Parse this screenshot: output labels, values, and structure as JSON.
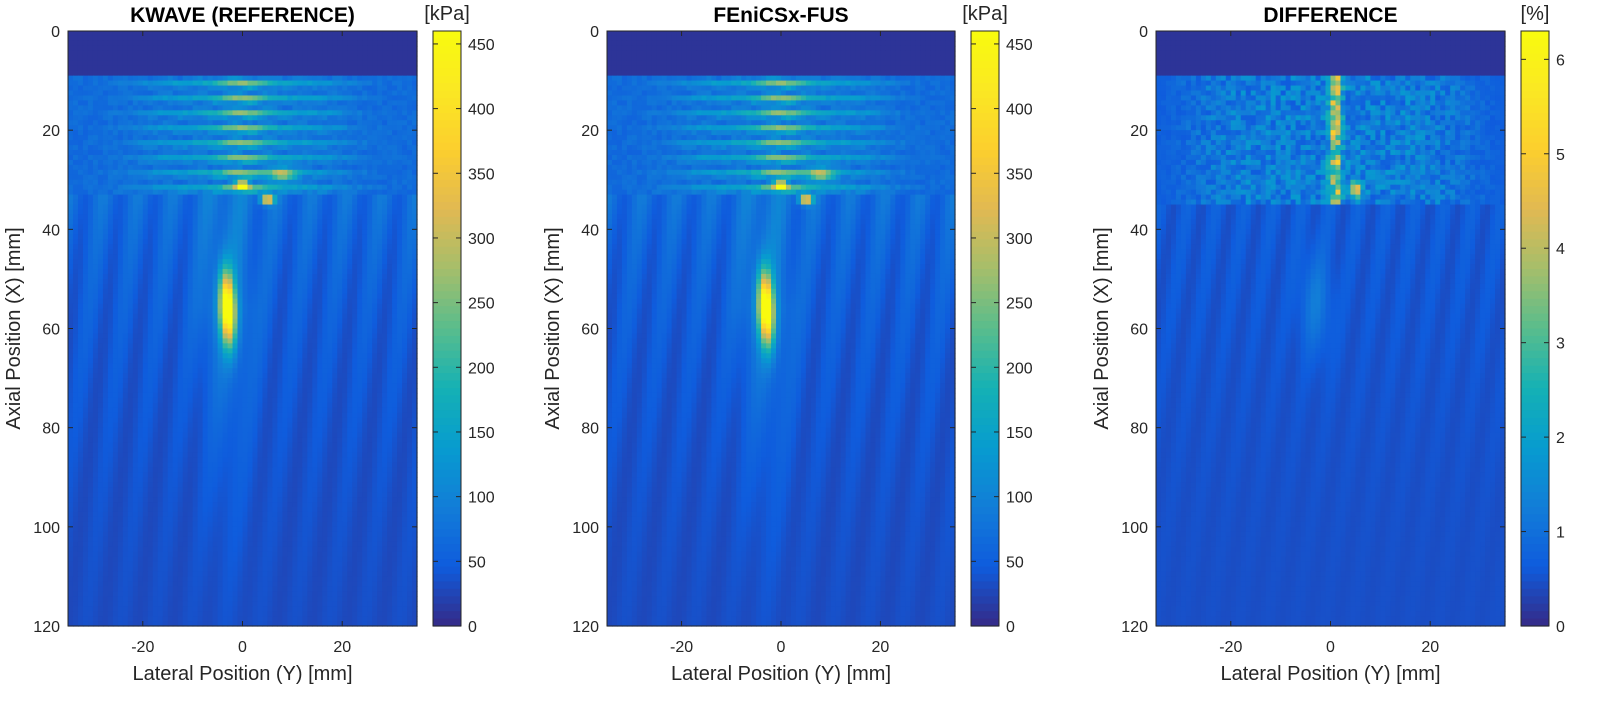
{
  "chart_data": [
    {
      "type": "heatmap",
      "title": "KWAVE (REFERENCE)",
      "xlabel": "Lateral Position (Y) [mm]",
      "ylabel": "Axial Position (X) [mm]",
      "xlim": [
        -35,
        35
      ],
      "ylim": [
        0,
        120
      ],
      "x_ticks": [
        -20,
        0,
        20
      ],
      "y_ticks": [
        0,
        20,
        40,
        60,
        80,
        100,
        120
      ],
      "colorbar_unit": "[kPa]",
      "clim": [
        0,
        460
      ],
      "colorbar_ticks": [
        0,
        50,
        100,
        150,
        200,
        250,
        300,
        350,
        400,
        450
      ],
      "colormap": "parula",
      "features": [
        {
          "name": "water layer (near zero)",
          "y_range": [
            0,
            9
          ]
        },
        {
          "name": "near-field interference",
          "y_range": [
            9,
            33
          ]
        },
        {
          "name": "focal spot",
          "x": -3,
          "y": 56,
          "peak": 450
        },
        {
          "name": "hot spots",
          "points": [
            [
              0,
              31,
              330
            ],
            [
              5,
              34,
              380
            ]
          ]
        }
      ]
    },
    {
      "type": "heatmap",
      "title": "FEniCSx-FUS",
      "xlabel": "Lateral Position (Y) [mm]",
      "ylabel": "Axial Position (X) [mm]",
      "xlim": [
        -35,
        35
      ],
      "ylim": [
        0,
        120
      ],
      "x_ticks": [
        -20,
        0,
        20
      ],
      "y_ticks": [
        0,
        20,
        40,
        60,
        80,
        100,
        120
      ],
      "colorbar_unit": "[kPa]",
      "clim": [
        0,
        460
      ],
      "colorbar_ticks": [
        0,
        50,
        100,
        150,
        200,
        250,
        300,
        350,
        400,
        450
      ],
      "colormap": "parula",
      "features": [
        {
          "name": "water layer (near zero)",
          "y_range": [
            0,
            9
          ]
        },
        {
          "name": "near-field interference",
          "y_range": [
            9,
            33
          ]
        },
        {
          "name": "focal spot",
          "x": -3,
          "y": 56,
          "peak": 450
        },
        {
          "name": "hot spots",
          "points": [
            [
              0,
              31,
              330
            ],
            [
              5,
              34,
              380
            ]
          ]
        }
      ]
    },
    {
      "type": "heatmap",
      "title": "DIFFERENCE",
      "xlabel": "Lateral Position (Y) [mm]",
      "ylabel": "Axial Position (X) [mm]",
      "xlim": [
        -35,
        35
      ],
      "ylim": [
        0,
        120
      ],
      "x_ticks": [
        -20,
        0,
        20
      ],
      "y_ticks": [
        0,
        20,
        40,
        60,
        80,
        100,
        120
      ],
      "colorbar_unit": "[%]",
      "clim": [
        0,
        6.3
      ],
      "colorbar_ticks": [
        0,
        1,
        2,
        3,
        4,
        5,
        6
      ],
      "colormap": "parula",
      "features": [
        {
          "name": "speckled near-field error",
          "y_range": [
            9,
            35
          ],
          "typical": 1.2
        },
        {
          "name": "max error spots",
          "x": 1,
          "y_range": [
            12,
            35
          ],
          "peak": 6
        }
      ]
    }
  ]
}
